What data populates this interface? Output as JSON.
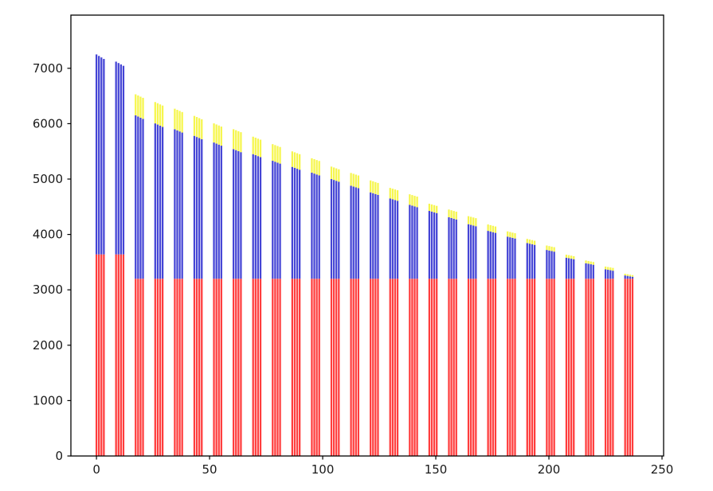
{
  "figure": {
    "background": "#ffffff",
    "title": ""
  },
  "chart_data": {
    "type": "bar",
    "variant": "clustered-stacked-thin-bars",
    "title": "",
    "xlabel": "",
    "ylabel": "",
    "grid": false,
    "legend": null,
    "x_ticks": [
      0,
      50,
      100,
      150,
      200,
      250
    ],
    "y_ticks": [
      0,
      1000,
      2000,
      3000,
      4000,
      5000,
      6000,
      7000
    ],
    "xlim": [
      -11.3,
      250.7
    ],
    "ylim": [
      0,
      7960
    ],
    "bars_per_cluster": 4,
    "cluster_pitch_x": 8.655,
    "bar_pitch_x": 1.09,
    "bar_width_x": 0.8,
    "colors": {
      "bottom_segment": "#ff3d3d",
      "middle_segment": "#4545d5",
      "top_segment": "#f6f64e",
      "axis": "#000000",
      "tick_label": "#1a1a1a"
    },
    "segments_order": [
      "red-bottom",
      "blue-middle",
      "yellow-top"
    ],
    "clusters": [
      {
        "red": 3640,
        "blue_top": 7250,
        "total": 7250,
        "step": 27
      },
      {
        "red": 3640,
        "blue_top": 7120,
        "total": 7120,
        "step": 25
      },
      {
        "red": 3200,
        "blue_top": 6150,
        "total": 6530,
        "step": 21
      },
      {
        "red": 3200,
        "blue_top": 6005,
        "total": 6390,
        "step": 21
      },
      {
        "red": 3200,
        "blue_top": 5900,
        "total": 6270,
        "step": 20
      },
      {
        "red": 3200,
        "blue_top": 5780,
        "total": 6140,
        "step": 20
      },
      {
        "red": 3200,
        "blue_top": 5660,
        "total": 6005,
        "step": 19
      },
      {
        "red": 3200,
        "blue_top": 5540,
        "total": 5900,
        "step": 18
      },
      {
        "red": 3200,
        "blue_top": 5450,
        "total": 5765,
        "step": 18
      },
      {
        "red": 3200,
        "blue_top": 5330,
        "total": 5630,
        "step": 17
      },
      {
        "red": 3200,
        "blue_top": 5220,
        "total": 5500,
        "step": 17
      },
      {
        "red": 3200,
        "blue_top": 5115,
        "total": 5375,
        "step": 16
      },
      {
        "red": 3200,
        "blue_top": 5000,
        "total": 5225,
        "step": 16
      },
      {
        "red": 3200,
        "blue_top": 4880,
        "total": 5110,
        "step": 15
      },
      {
        "red": 3200,
        "blue_top": 4760,
        "total": 4975,
        "step": 15
      },
      {
        "red": 3200,
        "blue_top": 4650,
        "total": 4840,
        "step": 14
      },
      {
        "red": 3200,
        "blue_top": 4535,
        "total": 4725,
        "step": 14
      },
      {
        "red": 3200,
        "blue_top": 4425,
        "total": 4555,
        "step": 13
      },
      {
        "red": 3200,
        "blue_top": 4310,
        "total": 4450,
        "step": 13
      },
      {
        "red": 3200,
        "blue_top": 4185,
        "total": 4330,
        "step": 12
      },
      {
        "red": 3200,
        "blue_top": 4065,
        "total": 4180,
        "step": 12
      },
      {
        "red": 3200,
        "blue_top": 3960,
        "total": 4055,
        "step": 11
      },
      {
        "red": 3200,
        "blue_top": 3845,
        "total": 3920,
        "step": 11
      },
      {
        "red": 3200,
        "blue_top": 3720,
        "total": 3800,
        "step": 10
      },
      {
        "red": 3200,
        "blue_top": 3580,
        "total": 3635,
        "step": 9
      },
      {
        "red": 3200,
        "blue_top": 3480,
        "total": 3530,
        "step": 9
      },
      {
        "red": 3200,
        "blue_top": 3370,
        "total": 3420,
        "step": 8
      },
      {
        "red": 3200,
        "blue_top": 3260,
        "total": 3290,
        "step": 8
      }
    ]
  }
}
